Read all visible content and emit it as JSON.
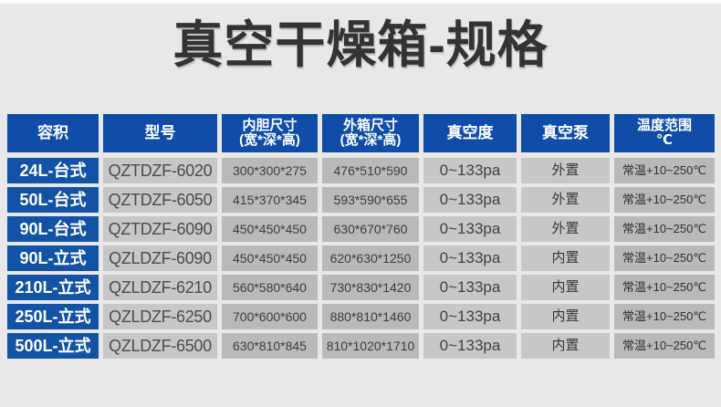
{
  "title": "真空干燥箱-规格",
  "colors": {
    "accent_blue": "#0f4da8",
    "row_blue": "#1253a5",
    "cell_gray_light": "#c7c7c7",
    "cell_gray_dark": "#b9b9b9",
    "page_background": "#e8e8e8",
    "title_text": "#333333"
  },
  "table": {
    "columns": [
      {
        "key": "volume",
        "label": "容积"
      },
      {
        "key": "model",
        "label": "型号"
      },
      {
        "key": "inner_size",
        "label": "内胆尺寸",
        "sublabel": "(宽*深*高)"
      },
      {
        "key": "outer_size",
        "label": "外箱尺寸",
        "sublabel": "(宽*深*高)"
      },
      {
        "key": "vacuum",
        "label": "真空度"
      },
      {
        "key": "pump",
        "label": "真空泵"
      },
      {
        "key": "temp_range",
        "label": "温度范围",
        "sublabel": "℃"
      }
    ],
    "rows": [
      {
        "volume": "24L-台式",
        "model": "QZTDZF-6020",
        "inner_size": "300*300*275",
        "outer_size": "476*510*590",
        "vacuum": "0~133pa",
        "pump": "外置",
        "temp_range": "常温+10~250℃"
      },
      {
        "volume": "50L-台式",
        "model": "QZTDZF-6050",
        "inner_size": "415*370*345",
        "outer_size": "593*590*655",
        "vacuum": "0~133pa",
        "pump": "外置",
        "temp_range": "常温+10~250℃"
      },
      {
        "volume": "90L-台式",
        "model": "QZTDZF-6090",
        "inner_size": "450*450*450",
        "outer_size": "630*670*760",
        "vacuum": "0~133pa",
        "pump": "外置",
        "temp_range": "常温+10~250℃"
      },
      {
        "volume": "90L-立式",
        "model": "QZLDZF-6090",
        "inner_size": "450*450*450",
        "outer_size": "620*630*1250",
        "vacuum": "0~133pa",
        "pump": "内置",
        "temp_range": "常温+10~250℃"
      },
      {
        "volume": "210L-立式",
        "model": "QZLDZF-6210",
        "inner_size": "560*580*640",
        "outer_size": "730*830*1420",
        "vacuum": "0~133pa",
        "pump": "内置",
        "temp_range": "常温+10~250℃"
      },
      {
        "volume": "250L-立式",
        "model": "QZLDZF-6250",
        "inner_size": "700*600*600",
        "outer_size": "880*810*1460",
        "vacuum": "0~133pa",
        "pump": "内置",
        "temp_range": "常温+10~250℃"
      },
      {
        "volume": "500L-立式",
        "model": "QZLDZF-6500",
        "inner_size": "630*810*845",
        "outer_size": "810*1020*1710",
        "vacuum": "0~133pa",
        "pump": "内置",
        "temp_range": "常温+10~250℃"
      }
    ]
  }
}
